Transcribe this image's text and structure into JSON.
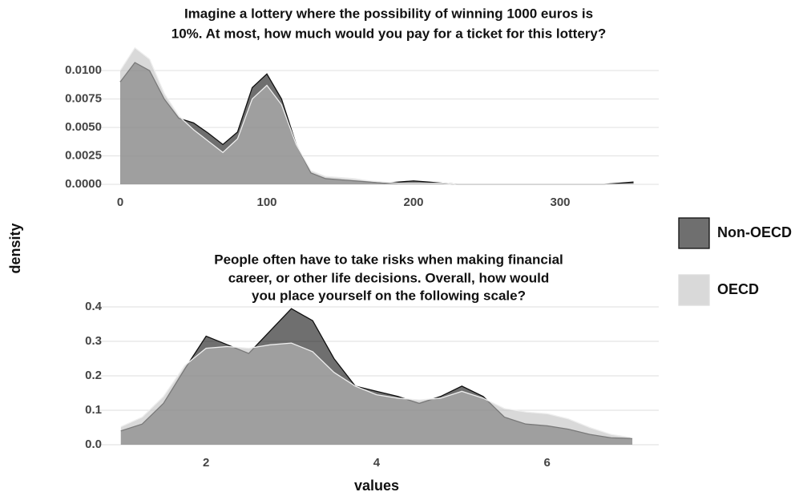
{
  "chart_data": [
    {
      "type": "area",
      "title": [
        "Imagine a lottery where the possibility of winning 1000 euros is",
        "10%. At most, how much would you pay for a ticket for this lottery?"
      ],
      "ylabel": "density",
      "legend": "right",
      "x": [
        0,
        10,
        20,
        30,
        40,
        50,
        60,
        70,
        80,
        90,
        100,
        110,
        120,
        130,
        140,
        150,
        160,
        170,
        180,
        190,
        200,
        210,
        220,
        230,
        240,
        250,
        260,
        270,
        280,
        290,
        300,
        310,
        320,
        330,
        340,
        350
      ],
      "series": [
        {
          "name": "Non-OECD",
          "color": "#0f0f0f",
          "values": [
            0.009,
            0.0107,
            0.01,
            0.0075,
            0.0058,
            0.0054,
            0.0045,
            0.0035,
            0.0046,
            0.0085,
            0.0097,
            0.0075,
            0.0035,
            0.001,
            0.0005,
            0.0004,
            0.0003,
            0.0002,
            0.0001,
            0.0002,
            0.0003,
            0.0002,
            0.0001,
            0,
            0,
            0,
            0,
            0,
            0,
            0,
            0,
            0,
            0,
            0,
            0.0001,
            0.0002
          ]
        },
        {
          "name": "OECD",
          "color": "#c0c0c0",
          "values": [
            0.01,
            0.012,
            0.011,
            0.008,
            0.006,
            0.0048,
            0.0038,
            0.0028,
            0.004,
            0.0075,
            0.0087,
            0.007,
            0.0035,
            0.0012,
            0.0007,
            0.0006,
            0.0005,
            0.0003,
            0.0002,
            0.0001,
            0.0001,
            0.0001,
            0.0001,
            0,
            0,
            0,
            0,
            0,
            0,
            0,
            0,
            0,
            0,
            0,
            0,
            0
          ]
        }
      ],
      "opacity": 0.6,
      "xlim": [
        -16.4,
        367.2
      ],
      "xticks": [
        0,
        100,
        200,
        300
      ],
      "ylim": [
        -0.0003,
        0.0122
      ],
      "yticks": [
        {
          "value": 0,
          "label": "0.0000"
        },
        0.0025,
        {
          "value": 0.005,
          "label": "0.0050"
        },
        0.0075,
        {
          "value": 0.01,
          "label": "0.0100"
        }
      ],
      "grid": true
    },
    {
      "type": "area",
      "title": [
        "People often have to take risks when making financial",
        "career, or other life decisions. Overall, how would",
        "you place yourself on the following scale?"
      ],
      "xlabel": "values",
      "x": [
        1,
        1.25,
        1.5,
        1.75,
        2,
        2.25,
        2.5,
        2.75,
        3,
        3.25,
        3.5,
        3.75,
        4,
        4.25,
        4.5,
        4.75,
        5,
        5.25,
        5.5,
        5.75,
        6,
        6.25,
        6.5,
        6.75,
        7
      ],
      "series": [
        {
          "color": "#0f0f0f",
          "values": [
            0.04,
            0.06,
            0.12,
            0.22,
            0.315,
            0.29,
            0.265,
            0.33,
            0.395,
            0.36,
            0.25,
            0.17,
            0.155,
            0.14,
            0.12,
            0.14,
            0.17,
            0.14,
            0.08,
            0.06,
            0.055,
            0.045,
            0.03,
            0.02,
            0.018
          ]
        },
        {
          "color": "#c0c0c0",
          "values": [
            0.052,
            0.08,
            0.14,
            0.23,
            0.28,
            0.285,
            0.28,
            0.29,
            0.295,
            0.27,
            0.21,
            0.17,
            0.145,
            0.135,
            0.13,
            0.135,
            0.155,
            0.135,
            0.105,
            0.095,
            0.09,
            0.075,
            0.05,
            0.03,
            0.02
          ]
        }
      ],
      "opacity": 0.6,
      "xlim": [
        0.71,
        7.31
      ],
      "xticks": [
        2,
        4,
        6
      ],
      "ylim": [
        -0.01,
        0.42
      ],
      "yticks": [
        {
          "value": 0,
          "label": "0.0"
        },
        0.1,
        0.2,
        0.3,
        0.4
      ],
      "grid": true
    }
  ]
}
